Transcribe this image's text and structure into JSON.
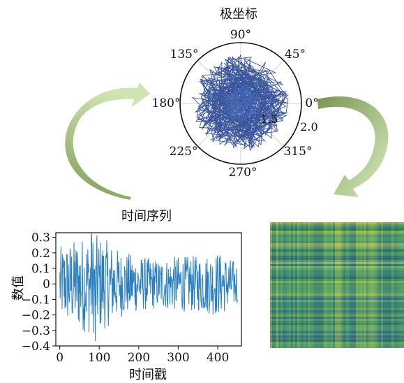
{
  "polar_title": "极坐标",
  "polar_angle_labels": [
    "90°",
    "45°",
    "0°",
    "315°",
    "270°",
    "225°",
    "180°",
    "135°"
  ],
  "polar_radial_labels": [
    "1.5",
    "2.0"
  ],
  "time_series_title": "时间序列",
  "time_series_ylabel": "数值",
  "time_series_xlabel": "时间戳",
  "colors": {
    "polar_line": "#1a3a8c",
    "series_line": "#2a7fc0",
    "arrow_light": "#cfe6b4",
    "arrow_dark": "#7fa05a"
  },
  "chart_data": {
    "type": "line",
    "x_range": [
      0,
      450
    ],
    "xlim": [
      -10,
      460
    ],
    "ylim": [
      -0.4,
      0.33
    ],
    "x_ticks": [
      0,
      100,
      200,
      300,
      400
    ],
    "y_ticks": [
      0.3,
      0.2,
      0.1,
      0,
      -0.1,
      -0.2,
      -0.3,
      -0.4
    ],
    "y_tick_labels": [
      "0.3",
      "0.2",
      "0.1",
      "0",
      "−0.1",
      "−0.2",
      "−0.3",
      "−0.4"
    ],
    "envelope": [
      [
        0,
        0.24
      ],
      [
        50,
        0.3
      ],
      [
        80,
        0.33
      ],
      [
        110,
        0.3
      ],
      [
        150,
        0.22
      ],
      [
        200,
        0.18
      ],
      [
        250,
        0.16
      ],
      [
        300,
        0.18
      ],
      [
        350,
        0.18
      ],
      [
        400,
        0.21
      ],
      [
        450,
        0.14
      ]
    ],
    "min_value": -0.37,
    "max_value": 0.33
  }
}
